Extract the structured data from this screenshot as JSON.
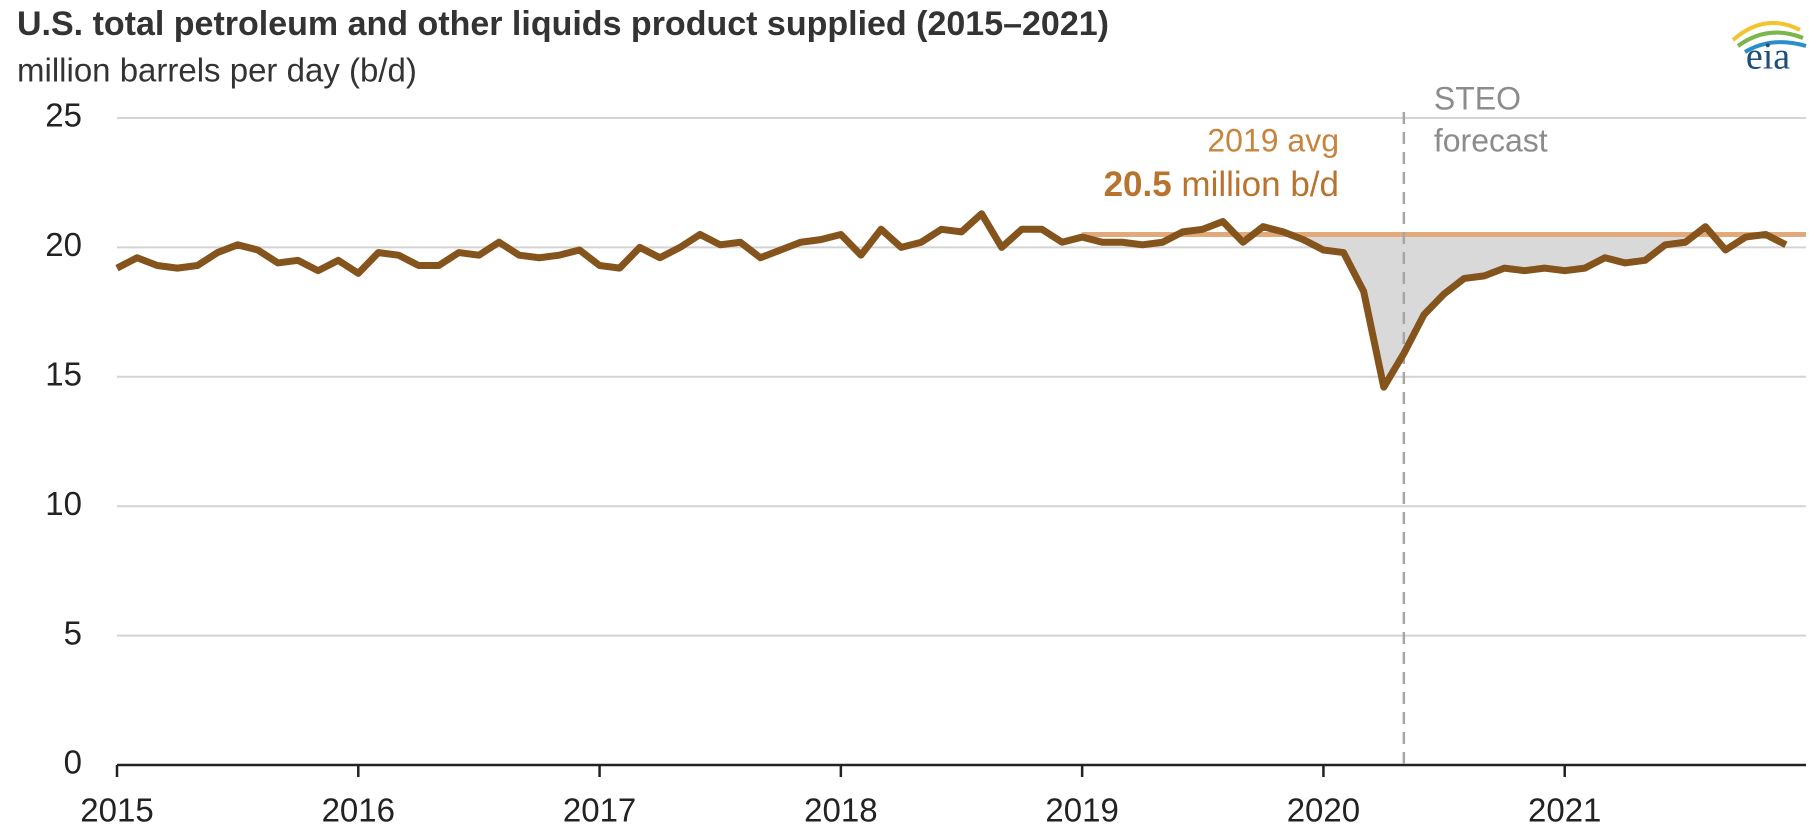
{
  "chart_data": {
    "type": "line",
    "title": "U.S. total petroleum and other liquids product supplied (2015–2021)",
    "subtitle": "million barrels per day (b/d)",
    "logo": "eia",
    "categories": [
      "2015",
      null,
      null,
      null,
      null,
      null,
      null,
      null,
      null,
      null,
      null,
      null,
      "2016",
      null,
      null,
      null,
      null,
      null,
      null,
      null,
      null,
      null,
      null,
      null,
      "2017",
      null,
      null,
      null,
      null,
      null,
      null,
      null,
      null,
      null,
      null,
      null,
      "2018",
      null,
      null,
      null,
      null,
      null,
      null,
      null,
      null,
      null,
      null,
      null,
      "2019",
      null,
      null,
      null,
      null,
      null,
      null,
      null,
      null,
      null,
      null,
      null,
      "2020",
      null,
      null,
      null,
      null,
      null,
      null,
      null,
      null,
      null,
      null,
      null,
      "2021",
      null,
      null,
      null,
      null,
      null,
      null,
      null,
      null,
      null,
      null,
      null
    ],
    "series": [
      {
        "color": "#85531c",
        "values": [
          19.2,
          19.6,
          19.3,
          19.2,
          19.3,
          19.8,
          20.1,
          19.9,
          19.4,
          19.5,
          19.1,
          19.5,
          19.0,
          19.8,
          19.7,
          19.3,
          19.3,
          19.8,
          19.7,
          20.2,
          19.7,
          19.6,
          19.7,
          19.9,
          19.3,
          19.2,
          20.0,
          19.6,
          20.0,
          20.5,
          20.1,
          20.2,
          19.6,
          19.9,
          20.2,
          20.3,
          20.5,
          19.7,
          20.7,
          20.0,
          20.2,
          20.7,
          20.6,
          21.3,
          20.0,
          20.7,
          20.7,
          20.2,
          20.4,
          20.2,
          20.2,
          20.1,
          20.2,
          20.6,
          20.7,
          21.0,
          20.2,
          20.8,
          20.6,
          20.3,
          19.9,
          19.8,
          18.3,
          14.6,
          15.9,
          17.4,
          18.2,
          18.8,
          18.9,
          19.2,
          19.1,
          19.2,
          19.1,
          19.2,
          19.6,
          19.4,
          19.5,
          20.1,
          20.2,
          20.8,
          19.9,
          20.4,
          20.5,
          20.1
        ]
      }
    ],
    "ylim": [
      0,
      25
    ],
    "yticks": [
      0,
      5,
      10,
      15,
      20,
      25
    ],
    "grid": true,
    "average": {
      "label": "2019 avg",
      "value": 20.5,
      "unit": "million b/d",
      "color": "#e2aa7a"
    },
    "forecast": {
      "label": [
        "STEO",
        "forecast"
      ]
    }
  }
}
